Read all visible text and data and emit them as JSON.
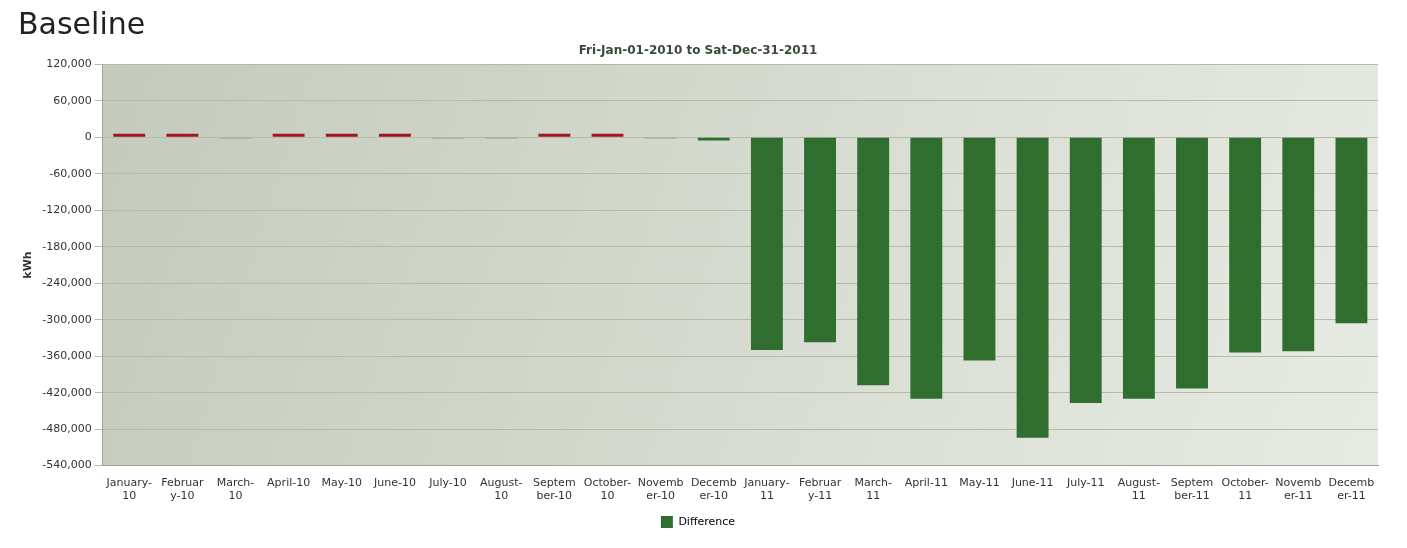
{
  "chart_data": {
    "type": "bar",
    "title": "Baseline",
    "subtitle": "Fri-Jan-01-2010 to Sat-Dec-31-2011",
    "ylabel": "kWh",
    "categories": [
      "January-10",
      "February-10",
      "March-10",
      "April-10",
      "May-10",
      "June-10",
      "July-10",
      "August-10",
      "September-10",
      "October-10",
      "November-10",
      "December-10",
      "January-11",
      "February-11",
      "March-11",
      "April-11",
      "May-11",
      "June-11",
      "July-11",
      "August-11",
      "September-11",
      "October-11",
      "November-11",
      "December-11"
    ],
    "series": [
      {
        "name": "Difference",
        "color": "#2f6e2f",
        "colors": [
          "#a3141f",
          "#a3141f",
          "#7fae7a",
          "#a3141f",
          "#a3141f",
          "#a3141f",
          "#7fae7a",
          "#7fae7a",
          "#a3141f",
          "#a3141f",
          "#7fae7a",
          "#2f6e2f",
          "#2f6e2f",
          "#2f6e2f",
          "#2f6e2f",
          "#2f6e2f",
          "#2f6e2f",
          "#2f6e2f",
          "#2f6e2f",
          "#2f6e2f",
          "#2f6e2f",
          "#2f6e2f",
          "#2f6e2f",
          "#2f6e2f"
        ],
        "values": [
          6000,
          6000,
          -2000,
          6000,
          6000,
          6000,
          -2000,
          -2000,
          6000,
          6000,
          -2000,
          -5000,
          -350000,
          -337000,
          -408000,
          -430000,
          -367000,
          -494000,
          -437000,
          -430000,
          -413000,
          -354000,
          -352000,
          -306000
        ]
      }
    ],
    "ylim": [
      -540000,
      120000
    ],
    "yticks": [
      {
        "value": -540000,
        "label": "-540,000"
      },
      {
        "value": -480000,
        "label": "-480,000"
      },
      {
        "value": -420000,
        "label": "-420,000"
      },
      {
        "value": -360000,
        "label": "-360,000"
      },
      {
        "value": -300000,
        "label": "-300,000"
      },
      {
        "value": -240000,
        "label": "-240,000"
      },
      {
        "value": -180000,
        "label": "-180,000"
      },
      {
        "value": -120000,
        "label": "-120,000"
      },
      {
        "value": -60000,
        "label": "-60,000"
      },
      0,
      {
        "value": 60000,
        "label": "60,000"
      },
      {
        "value": 120000,
        "label": "120,000"
      }
    ],
    "grid": "y",
    "legend": "bottom"
  }
}
